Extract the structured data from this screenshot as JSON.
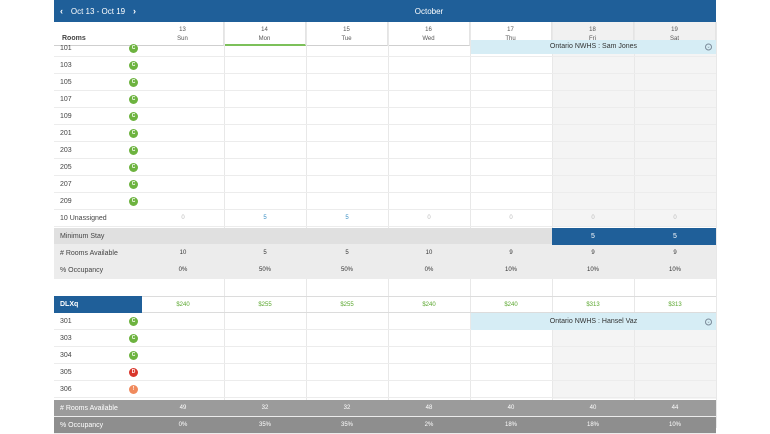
{
  "header": {
    "range_label": "Oct 13 - Oct 19",
    "prev_icon": "chevron-left-icon",
    "next_icon": "chevron-right-icon",
    "month": "October",
    "rooms_label": "Rooms"
  },
  "days": [
    {
      "num": "13",
      "name": "Sun"
    },
    {
      "num": "14",
      "name": "Mon"
    },
    {
      "num": "15",
      "name": "Tue"
    },
    {
      "num": "16",
      "name": "Wed"
    },
    {
      "num": "17",
      "name": "Thu"
    },
    {
      "num": "18",
      "name": "Fri"
    },
    {
      "num": "19",
      "name": "Sat"
    }
  ],
  "section1": {
    "rooms": [
      {
        "label": "101",
        "status": "C"
      },
      {
        "label": "103",
        "status": "C"
      },
      {
        "label": "105",
        "status": "C"
      },
      {
        "label": "107",
        "status": "C"
      },
      {
        "label": "109",
        "status": "C"
      },
      {
        "label": "201",
        "status": "C"
      },
      {
        "label": "203",
        "status": "C"
      },
      {
        "label": "205",
        "status": "C"
      },
      {
        "label": "207",
        "status": "C"
      },
      {
        "label": "209",
        "status": "C"
      }
    ],
    "booking": "Ontario NWHS : Sam Jones",
    "unassigned_label": "10 Unassigned",
    "unassigned_values": [
      "0",
      "5",
      "5",
      "0",
      "0",
      "0",
      "0"
    ],
    "min_stay_label": "Minimum Stay",
    "min_stay_values": [
      "",
      "",
      "",
      "",
      "",
      "5",
      "5"
    ],
    "available_label": "# Rooms Available",
    "available_values": [
      "10",
      "5",
      "5",
      "10",
      "9",
      "9",
      "9"
    ],
    "occupancy_label": "% Occupancy",
    "occupancy_values": [
      "0%",
      "50%",
      "50%",
      "0%",
      "10%",
      "10%",
      "10%"
    ]
  },
  "section2": {
    "type_label": "DLXq",
    "prices": [
      "$240",
      "$255",
      "$255",
      "$240",
      "$240",
      "$313",
      "$313"
    ],
    "rooms": [
      {
        "label": "301",
        "status": "C"
      },
      {
        "label": "303",
        "status": "C"
      },
      {
        "label": "304",
        "status": "C"
      },
      {
        "label": "305",
        "status": "D"
      },
      {
        "label": "306",
        "status": "I"
      }
    ],
    "booking": "Ontario NWHS : Hansel Vaz",
    "available_label": "# Rooms Available",
    "available_values": [
      "49",
      "32",
      "32",
      "48",
      "40",
      "40",
      "44"
    ],
    "occupancy_label": "% Occupancy",
    "occupancy_values": [
      "0%",
      "35%",
      "35%",
      "2%",
      "18%",
      "18%",
      "10%"
    ]
  },
  "colors": {
    "brand_blue": "#1f5f99",
    "status_clean": "#6db33f",
    "status_dirty": "#d9362c",
    "status_inspect": "#f08a5d",
    "price_green": "#5aa72e",
    "booking_bg": "#d6edf5"
  }
}
